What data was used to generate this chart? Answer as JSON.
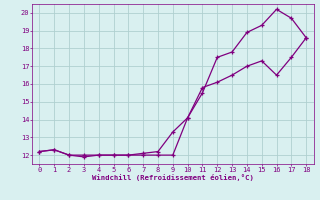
{
  "xlabel": "Windchill (Refroidissement éolien,°C)",
  "bg_color": "#d9f0f0",
  "line_color": "#800080",
  "grid_color": "#b0d0d0",
  "xlim": [
    -0.5,
    18.5
  ],
  "ylim": [
    11.5,
    20.5
  ],
  "xticks": [
    0,
    1,
    2,
    3,
    4,
    5,
    6,
    7,
    8,
    9,
    10,
    11,
    12,
    13,
    14,
    15,
    16,
    17,
    18
  ],
  "yticks": [
    12,
    13,
    14,
    15,
    16,
    17,
    18,
    19,
    20
  ],
  "curve1_x": [
    0,
    1,
    2,
    3,
    4,
    5,
    6,
    7,
    8,
    9,
    10,
    11,
    12,
    13,
    14,
    15,
    16,
    17,
    18
  ],
  "curve1_y": [
    12.2,
    12.3,
    12.0,
    11.9,
    12.0,
    12.0,
    12.0,
    12.1,
    12.2,
    13.3,
    14.1,
    15.5,
    17.5,
    17.8,
    18.9,
    19.3,
    20.2,
    19.7,
    18.6
  ],
  "curve2_x": [
    0,
    1,
    2,
    3,
    4,
    5,
    6,
    7,
    8,
    9,
    10,
    11,
    12,
    13,
    14,
    15,
    16,
    17,
    18
  ],
  "curve2_y": [
    12.2,
    12.3,
    12.0,
    12.0,
    12.0,
    12.0,
    12.0,
    12.0,
    12.0,
    12.0,
    14.1,
    15.8,
    16.1,
    16.5,
    17.0,
    17.3,
    16.5,
    17.5,
    18.6
  ]
}
